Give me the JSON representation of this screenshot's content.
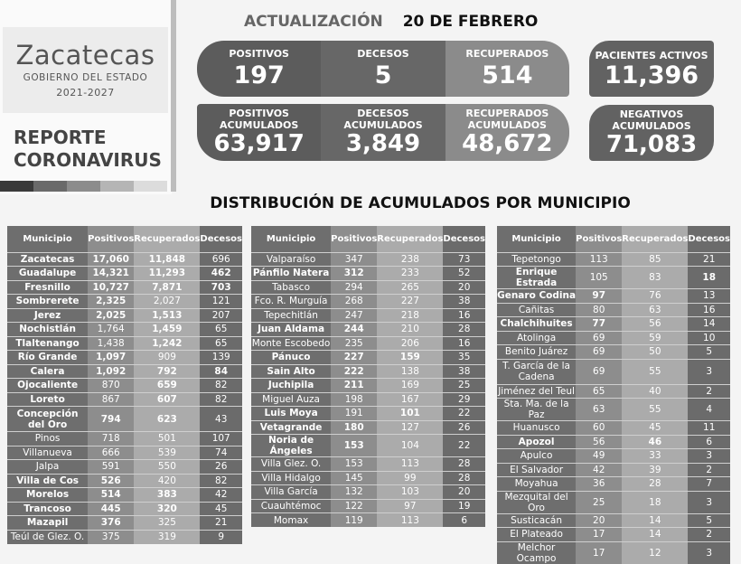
{
  "logo": {
    "name": "Zacatecas",
    "sub": "GOBIERNO DEL ESTADO",
    "years": "2021-2027"
  },
  "report": {
    "line1": "REPORTE",
    "line2": "CORONAVIRUS"
  },
  "colors": {
    "bar": [
      "#3a3a3a",
      "#6a6a6a",
      "#8c8c8c",
      "#b5b5b5",
      "#dcdcdc"
    ]
  },
  "update": {
    "label": "ACTUALIZACIÓN",
    "date": "20 DE FEBRERO"
  },
  "daily": [
    {
      "label": "POSITIVOS",
      "value": "197"
    },
    {
      "label": "DECESOS",
      "value": "5"
    },
    {
      "label": "RECUPERADOS",
      "value": "514"
    }
  ],
  "cumulative": [
    {
      "label1": "POSITIVOS",
      "label2": "ACUMULADOS",
      "value": "63,917"
    },
    {
      "label1": "DECESOS",
      "label2": "ACUMULADOS",
      "value": "3,849"
    },
    {
      "label1": "RECUPERADOS",
      "label2": "ACUMULADOS",
      "value": "48,672"
    }
  ],
  "active": {
    "label": "PACIENTES ACTIVOS",
    "value": "11,396"
  },
  "negatives": {
    "label1": "NEGATIVOS",
    "label2": "ACUMULADOS",
    "value": "71,083"
  },
  "heading": "DISTRIBUCIÓN DE ACUMULADOS POR MUNICIPIO",
  "columns": [
    "Municipio",
    "Positivos",
    "Recuperados",
    "Decesos"
  ],
  "tables": [
    {
      "rows": [
        [
          "Zacatecas",
          "17,060",
          "11,848",
          "696"
        ],
        [
          "Guadalupe",
          "14,321",
          "11,293",
          "462"
        ],
        [
          "Fresnillo",
          "10,727",
          "7,871",
          "703"
        ],
        [
          "Sombrerete",
          "2,325",
          "2,027",
          "121"
        ],
        [
          "Jerez",
          "2,025",
          "1,513",
          "207"
        ],
        [
          "Nochistlán",
          "1,764",
          "1,459",
          "65"
        ],
        [
          "Tlaltenango",
          "1,438",
          "1,242",
          "65"
        ],
        [
          "Río Grande",
          "1,097",
          "909",
          "139"
        ],
        [
          "Calera",
          "1,092",
          "792",
          "84"
        ],
        [
          "Ojocaliente",
          "870",
          "659",
          "82"
        ],
        [
          "Loreto",
          "867",
          "607",
          "82"
        ],
        [
          "Concepción del Oro",
          "794",
          "623",
          "43"
        ],
        [
          "Pinos",
          "718",
          "501",
          "107"
        ],
        [
          "Villanueva",
          "666",
          "539",
          "74"
        ],
        [
          "Jalpa",
          "591",
          "550",
          "26"
        ],
        [
          "Villa de Cos",
          "526",
          "420",
          "82"
        ],
        [
          "Morelos",
          "514",
          "383",
          "42"
        ],
        [
          "Trancoso",
          "445",
          "320",
          "45"
        ],
        [
          "Mazapil",
          "376",
          "325",
          "21"
        ],
        [
          "Teúl de Glez. O.",
          "375",
          "319",
          "9"
        ]
      ],
      "bold": [
        [
          0,
          1,
          2
        ],
        [
          0,
          1,
          2,
          3
        ],
        [
          0,
          1,
          2,
          3
        ],
        [
          0,
          1
        ],
        [
          0,
          1,
          2
        ],
        [
          0,
          2
        ],
        [
          0,
          2
        ],
        [
          0,
          1
        ],
        [
          0,
          1,
          2,
          3
        ],
        [
          0,
          2
        ],
        [
          0,
          2
        ],
        [
          0,
          1,
          2
        ],
        [],
        [],
        [],
        [
          0,
          1
        ],
        [
          0,
          1,
          2
        ],
        [
          0,
          1,
          2
        ],
        [
          0,
          1
        ],
        []
      ]
    },
    {
      "rows": [
        [
          "Valparaíso",
          "347",
          "238",
          "73"
        ],
        [
          "Pánfilo Natera",
          "312",
          "233",
          "52"
        ],
        [
          "Tabasco",
          "294",
          "265",
          "20"
        ],
        [
          "Fco. R. Murguía",
          "268",
          "227",
          "38"
        ],
        [
          "Tepechitlán",
          "247",
          "218",
          "16"
        ],
        [
          "Juan Aldama",
          "244",
          "210",
          "28"
        ],
        [
          "Monte Escobedo",
          "235",
          "206",
          "16"
        ],
        [
          "Pánuco",
          "227",
          "159",
          "35"
        ],
        [
          "Sain Alto",
          "222",
          "138",
          "38"
        ],
        [
          "Juchipila",
          "211",
          "169",
          "25"
        ],
        [
          "Miguel Auza",
          "198",
          "167",
          "29"
        ],
        [
          "Luis Moya",
          "191",
          "101",
          "22"
        ],
        [
          "Vetagrande",
          "180",
          "127",
          "26"
        ],
        [
          "Noria de Ángeles",
          "153",
          "104",
          "22"
        ],
        [
          "Villa Glez. O.",
          "153",
          "113",
          "28"
        ],
        [
          "Villa Hidalgo",
          "145",
          "99",
          "28"
        ],
        [
          "Villa García",
          "132",
          "103",
          "20"
        ],
        [
          "Cuauhtémoc",
          "122",
          "97",
          "19"
        ],
        [
          "Momax",
          "119",
          "113",
          "6"
        ]
      ],
      "bold": [
        [],
        [
          0,
          1
        ],
        [],
        [],
        [],
        [
          0,
          1
        ],
        [],
        [
          0,
          1,
          2
        ],
        [
          0,
          1
        ],
        [
          0,
          1
        ],
        [],
        [
          0,
          2
        ],
        [
          0,
          1
        ],
        [
          0,
          1
        ],
        [],
        [],
        [],
        [],
        []
      ]
    },
    {
      "rows": [
        [
          "Tepetongo",
          "113",
          "85",
          "21"
        ],
        [
          "Enrique Estrada",
          "105",
          "83",
          "18"
        ],
        [
          "Genaro Codina",
          "97",
          "76",
          "13"
        ],
        [
          "Cañitas",
          "80",
          "63",
          "16"
        ],
        [
          "Chalchihuites",
          "77",
          "56",
          "14"
        ],
        [
          "Atolinga",
          "69",
          "59",
          "10"
        ],
        [
          "Benito Juárez",
          "69",
          "50",
          "5"
        ],
        [
          "T. García de la Cadena",
          "69",
          "55",
          "3"
        ],
        [
          "Jiménez del Teul",
          "65",
          "40",
          "2"
        ],
        [
          "Sta. Ma. de la Paz",
          "63",
          "55",
          "4"
        ],
        [
          "Huanusco",
          "60",
          "45",
          "11"
        ],
        [
          "Apozol",
          "56",
          "46",
          "6"
        ],
        [
          "Apulco",
          "49",
          "33",
          "3"
        ],
        [
          "El Salvador",
          "42",
          "39",
          "2"
        ],
        [
          "Moyahua",
          "36",
          "28",
          "7"
        ],
        [
          "Mezquital del Oro",
          "25",
          "18",
          "3"
        ],
        [
          "Susticacán",
          "20",
          "14",
          "5"
        ],
        [
          "El Plateado",
          "17",
          "14",
          "2"
        ],
        [
          "Melchor Ocampo",
          "17",
          "12",
          "3"
        ]
      ],
      "bold": [
        [],
        [
          0,
          3
        ],
        [
          0,
          1
        ],
        [],
        [
          0,
          1
        ],
        [],
        [],
        [],
        [],
        [],
        [],
        [
          0,
          2
        ],
        [],
        [],
        [],
        [],
        [],
        [],
        []
      ]
    }
  ]
}
